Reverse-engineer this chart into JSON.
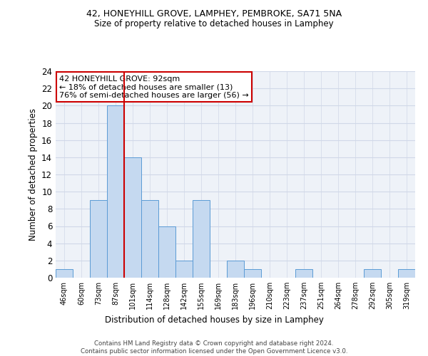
{
  "title1": "42, HONEYHILL GROVE, LAMPHEY, PEMBROKE, SA71 5NA",
  "title2": "Size of property relative to detached houses in Lamphey",
  "xlabel": "Distribution of detached houses by size in Lamphey",
  "ylabel": "Number of detached properties",
  "bar_labels": [
    "46sqm",
    "60sqm",
    "73sqm",
    "87sqm",
    "101sqm",
    "114sqm",
    "128sqm",
    "142sqm",
    "155sqm",
    "169sqm",
    "183sqm",
    "196sqm",
    "210sqm",
    "223sqm",
    "237sqm",
    "251sqm",
    "264sqm",
    "278sqm",
    "292sqm",
    "305sqm",
    "319sqm"
  ],
  "bar_values": [
    1,
    0,
    9,
    20,
    14,
    9,
    6,
    2,
    9,
    0,
    2,
    1,
    0,
    0,
    1,
    0,
    0,
    0,
    1,
    0,
    1
  ],
  "bar_color": "#c5d9f0",
  "bar_edgecolor": "#5b9bd5",
  "vline_x": 3.5,
  "vline_color": "#cc0000",
  "ylim": [
    0,
    24
  ],
  "yticks": [
    0,
    2,
    4,
    6,
    8,
    10,
    12,
    14,
    16,
    18,
    20,
    22,
    24
  ],
  "annotation_text": "42 HONEYHILL GROVE: 92sqm\n← 18% of detached houses are smaller (13)\n76% of semi-detached houses are larger (56) →",
  "annotation_box_color": "#ffffff",
  "annotation_box_edgecolor": "#cc0000",
  "footnote": "Contains HM Land Registry data © Crown copyright and database right 2024.\nContains public sector information licensed under the Open Government Licence v3.0.",
  "grid_color": "#d0d8e8",
  "bg_color": "#eef2f8"
}
